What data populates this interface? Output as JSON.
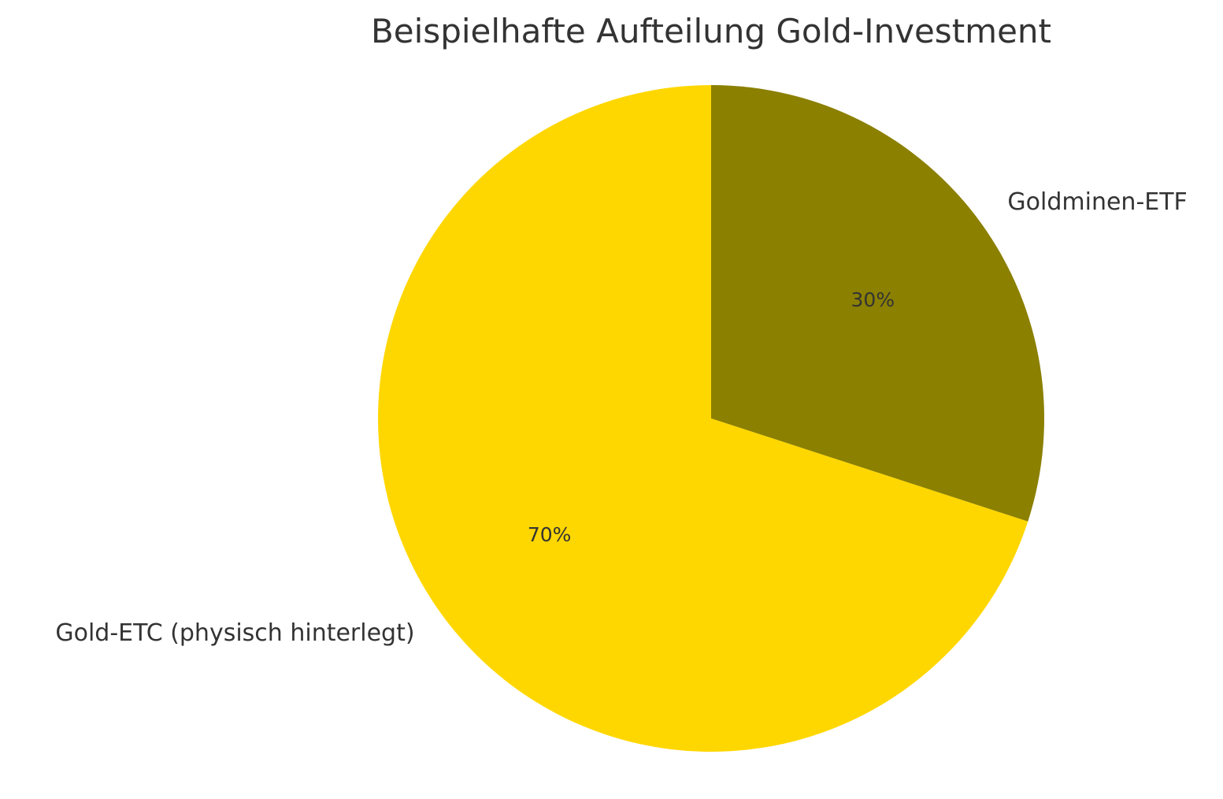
{
  "chart_data": {
    "type": "pie",
    "title": "Beispielhafte Aufteilung Gold-Investment",
    "categories": [
      "Gold-ETC (physisch hinterlegt)",
      "Goldminen-ETF"
    ],
    "values": [
      70,
      30
    ],
    "value_labels": [
      "70%",
      "30%"
    ],
    "colors": [
      "#FFD700",
      "#8B8000"
    ],
    "start_angle_deg": 90,
    "direction": "counterclockwise",
    "legend": "none"
  }
}
